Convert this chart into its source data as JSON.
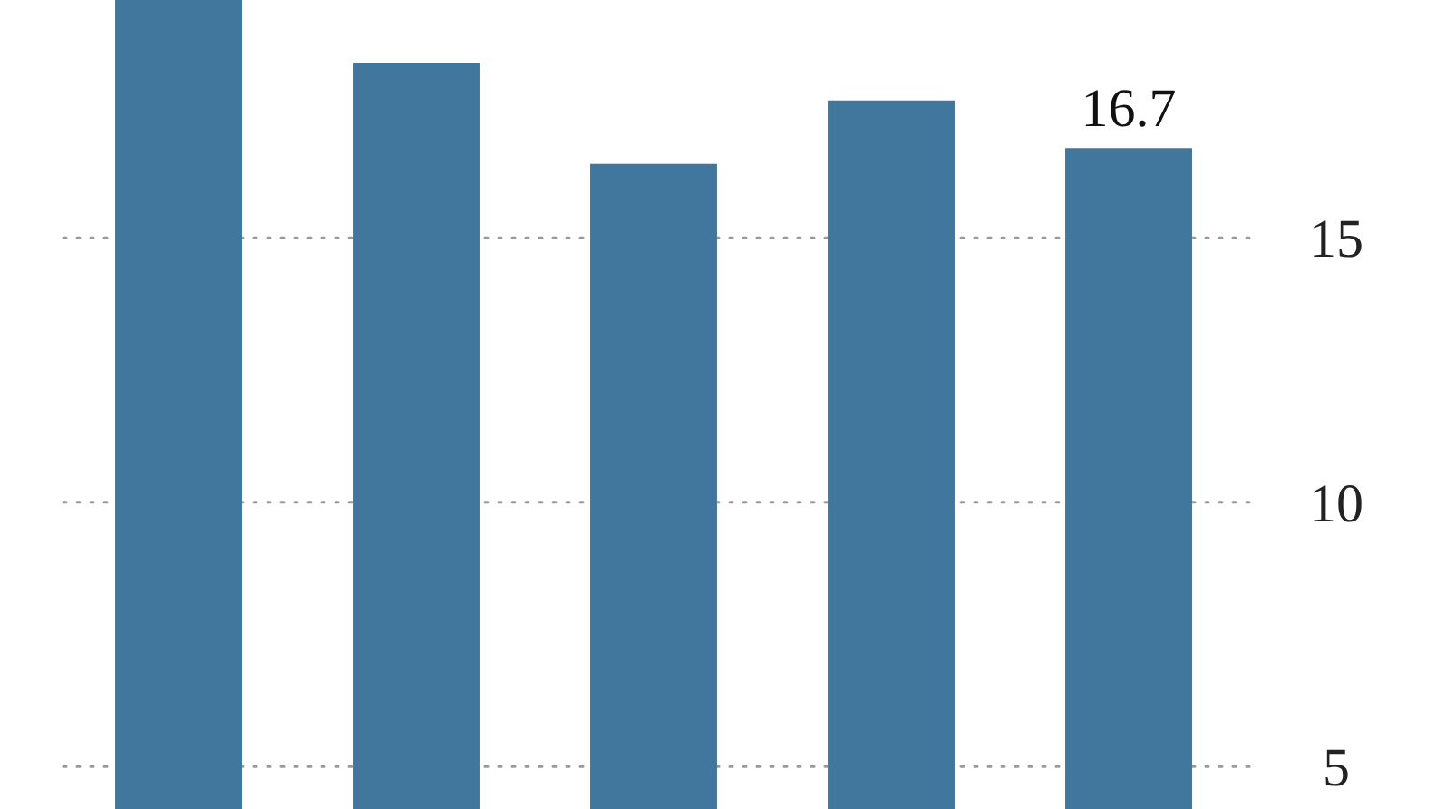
{
  "chart_data": {
    "type": "bar",
    "categories": [
      null,
      null,
      null,
      null,
      null
    ],
    "values": [
      19.5,
      18.3,
      16.4,
      17.6,
      16.7
    ],
    "value_labels": [
      null,
      null,
      null,
      null,
      "16.7"
    ],
    "color": "#41779c",
    "ylim": [
      4.2,
      19.5
    ],
    "yticks": [
      5,
      10,
      15
    ],
    "grid": "y",
    "tick_labels": "y"
  }
}
